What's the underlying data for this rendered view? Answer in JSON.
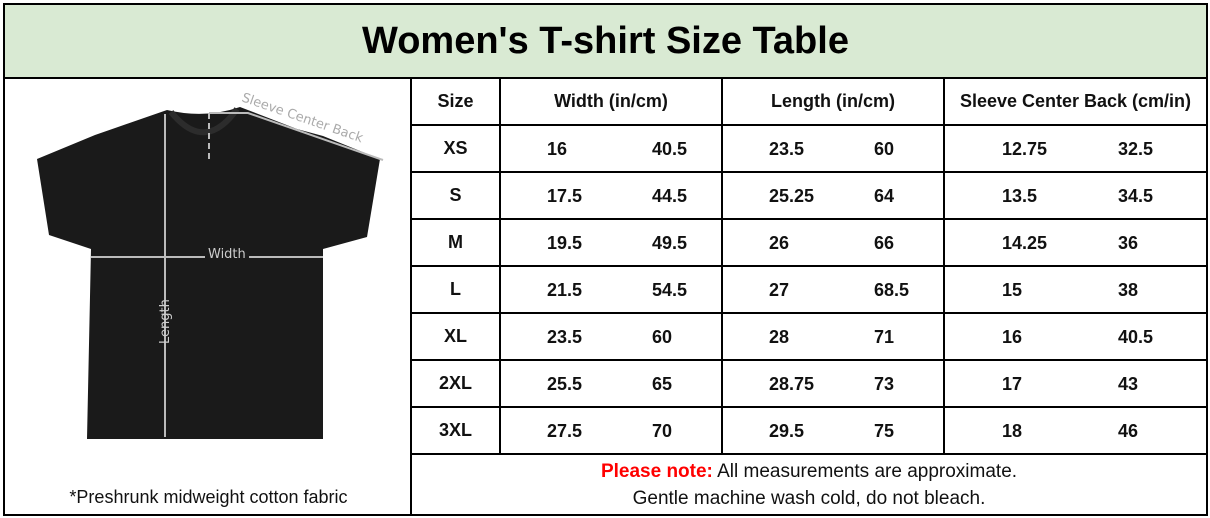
{
  "title": "Women's T-shirt Size Table",
  "image": {
    "labels": {
      "sleeve": "Sleeve Center Back",
      "width": "Width",
      "length": "Length"
    },
    "caption": "*Preshrunk midweight cotton fabric"
  },
  "table": {
    "headers": [
      "Size",
      "Width (in/cm)",
      "Length (in/cm)",
      "Sleeve Center Back (cm/in)"
    ],
    "rows": [
      {
        "size": "XS",
        "w_in": "16",
        "w_cm": "40.5",
        "l_in": "23.5",
        "l_cm": "60",
        "s_a": "12.75",
        "s_b": "32.5"
      },
      {
        "size": "S",
        "w_in": "17.5",
        "w_cm": "44.5",
        "l_in": "25.25",
        "l_cm": "64",
        "s_a": "13.5",
        "s_b": "34.5"
      },
      {
        "size": "M",
        "w_in": "19.5",
        "w_cm": "49.5",
        "l_in": "26",
        "l_cm": "66",
        "s_a": "14.25",
        "s_b": "36"
      },
      {
        "size": "L",
        "w_in": "21.5",
        "w_cm": "54.5",
        "l_in": "27",
        "l_cm": "68.5",
        "s_a": "15",
        "s_b": "38"
      },
      {
        "size": "XL",
        "w_in": "23.5",
        "w_cm": "60",
        "l_in": "28",
        "l_cm": "71",
        "s_a": "16",
        "s_b": "40.5"
      },
      {
        "size": "2XL",
        "w_in": "25.5",
        "w_cm": "65",
        "l_in": "28.75",
        "l_cm": "73",
        "s_a": "17",
        "s_b": "43"
      },
      {
        "size": "3XL",
        "w_in": "27.5",
        "w_cm": "70",
        "l_in": "29.5",
        "l_cm": "75",
        "s_a": "18",
        "s_b": "46"
      }
    ]
  },
  "note": {
    "label": "Please note:",
    "line1": "All measurements are approximate.",
    "line2": "Gentle machine wash cold, do not bleach."
  },
  "colors": {
    "title_bg": "#d9ead3",
    "note_label": "#ff0000",
    "shirt": "#1a1a1a"
  }
}
